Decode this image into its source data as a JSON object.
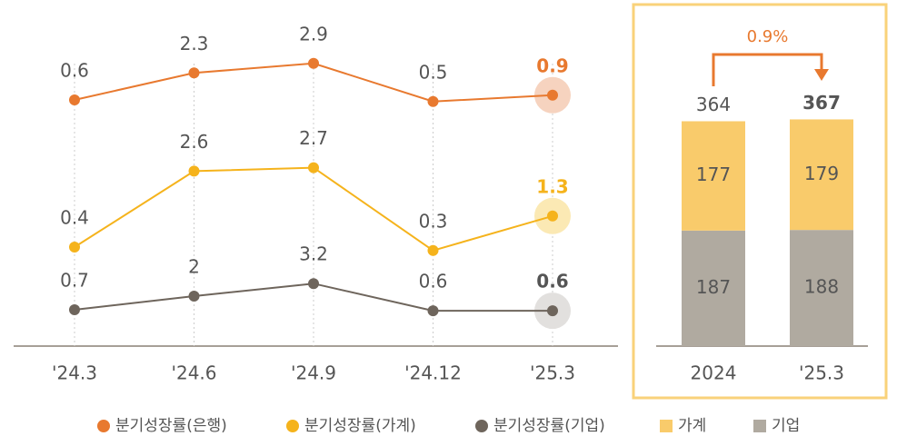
{
  "chart_data": [
    {
      "type": "line",
      "categories": [
        "'24.3",
        "'24.6",
        "'24.9",
        "'24.12",
        "'25.3"
      ],
      "series": [
        {
          "name": "분기성장률(은행)",
          "color": "#e8792f",
          "values": [
            0.6,
            2.3,
            2.9,
            0.5,
            0.9
          ]
        },
        {
          "name": "분기성장률(가계)",
          "color": "#f5b31c",
          "values": [
            0.4,
            2.6,
            2.7,
            0.3,
            1.3
          ]
        },
        {
          "name": "분기성장률(기업)",
          "color": "#6e655c",
          "values": [
            0.7,
            2.0,
            3.2,
            0.6,
            0.6
          ]
        }
      ]
    },
    {
      "type": "bar",
      "stacked": true,
      "categories": [
        "2024",
        "'25.3"
      ],
      "series": [
        {
          "name": "가계",
          "color": "#f9cb6b",
          "values": [
            177,
            179
          ]
        },
        {
          "name": "기업",
          "color": "#b0aaa0",
          "values": [
            187,
            188
          ]
        }
      ],
      "totals": [
        364,
        367
      ],
      "annotation": "0.9%"
    }
  ]
}
